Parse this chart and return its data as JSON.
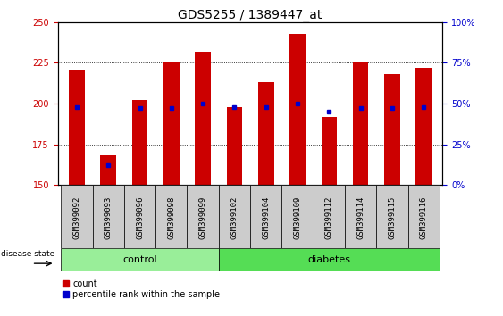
{
  "title": "GDS5255 / 1389447_at",
  "samples": [
    "GSM399092",
    "GSM399093",
    "GSM399096",
    "GSM399098",
    "GSM399099",
    "GSM399102",
    "GSM399104",
    "GSM399109",
    "GSM399112",
    "GSM399114",
    "GSM399115",
    "GSM399116"
  ],
  "counts": [
    221,
    168,
    202,
    226,
    232,
    198,
    213,
    243,
    192,
    226,
    218,
    222
  ],
  "percentiles": [
    48,
    12,
    47,
    47,
    50,
    48,
    48,
    50,
    45,
    47,
    47,
    48
  ],
  "groups": [
    "control",
    "control",
    "control",
    "control",
    "control",
    "diabetes",
    "diabetes",
    "diabetes",
    "diabetes",
    "diabetes",
    "diabetes",
    "diabetes"
  ],
  "n_control": 5,
  "n_diabetes": 7,
  "ylim_left": [
    150,
    250
  ],
  "ylim_right": [
    0,
    100
  ],
  "bar_color": "#cc0000",
  "percentile_color": "#0000cc",
  "bg_color": "#cccccc",
  "control_color": "#99ee99",
  "diabetes_color": "#55dd55",
  "bar_width": 0.5,
  "ylabel_left_color": "#cc0000",
  "ylabel_right_color": "#0000cc",
  "title_fontsize": 10,
  "tick_fontsize": 7,
  "label_fontsize": 6.5,
  "legend_fontsize": 7,
  "group_fontsize": 8
}
